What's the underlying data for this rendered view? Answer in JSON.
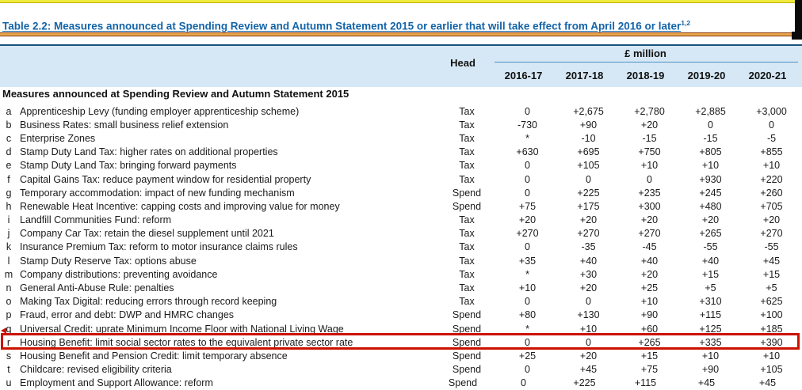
{
  "title": {
    "text": "Table 2.2: Measures announced at Spending Review and Autumn Statement 2015 or earlier that will take effect from April 2016 or later",
    "superscript": "1,2"
  },
  "columns": {
    "head_label": "Head",
    "unit_label": "£ million",
    "years": [
      "2016-17",
      "2017-18",
      "2018-19",
      "2019-20",
      "2020-21"
    ]
  },
  "section": {
    "heading": "Measures announced at Spending Review and Autumn Statement 2015"
  },
  "rows": [
    {
      "label": "a",
      "measure": "Apprenticeship Levy (funding employer apprenticeship scheme)",
      "head": "Tax",
      "values": [
        "0",
        "+2,675",
        "+2,780",
        "+2,885",
        "+3,000"
      ]
    },
    {
      "label": "b",
      "measure": "Business Rates: small business relief extension",
      "head": "Tax",
      "values": [
        "-730",
        "+90",
        "+20",
        "0",
        "0"
      ]
    },
    {
      "label": "c",
      "measure": "Enterprise Zones",
      "head": "Tax",
      "values": [
        "*",
        "-10",
        "-15",
        "-15",
        "-5"
      ]
    },
    {
      "label": "d",
      "measure": "Stamp Duty Land Tax: higher rates on additional properties",
      "head": "Tax",
      "values": [
        "+630",
        "+695",
        "+750",
        "+805",
        "+855"
      ]
    },
    {
      "label": "e",
      "measure": "Stamp Duty Land Tax: bringing forward payments",
      "head": "Tax",
      "values": [
        "0",
        "+105",
        "+10",
        "+10",
        "+10"
      ]
    },
    {
      "label": "f",
      "measure": "Capital Gains Tax: reduce payment window for residential property",
      "head": "Tax",
      "values": [
        "0",
        "0",
        "0",
        "+930",
        "+220"
      ]
    },
    {
      "label": "g",
      "measure": "Temporary accommodation: impact of new funding mechanism",
      "head": "Spend",
      "values": [
        "0",
        "+225",
        "+235",
        "+245",
        "+260"
      ]
    },
    {
      "label": "h",
      "measure": "Renewable Heat Incentive: capping costs and improving value for money",
      "head": "Spend",
      "values": [
        "+75",
        "+175",
        "+300",
        "+480",
        "+705"
      ]
    },
    {
      "label": "i",
      "measure": "Landfill Communities Fund: reform",
      "head": "Tax",
      "values": [
        "+20",
        "+20",
        "+20",
        "+20",
        "+20"
      ]
    },
    {
      "label": "j",
      "measure": "Company Car Tax: retain the diesel supplement until 2021",
      "head": "Tax",
      "values": [
        "+270",
        "+270",
        "+270",
        "+265",
        "+270"
      ]
    },
    {
      "label": "k",
      "measure": "Insurance Premium Tax: reform to motor insurance claims rules",
      "head": "Tax",
      "values": [
        "0",
        "-35",
        "-45",
        "-55",
        "-55"
      ]
    },
    {
      "label": "l",
      "measure": "Stamp Duty Reserve Tax: options abuse",
      "head": "Tax",
      "values": [
        "+35",
        "+40",
        "+40",
        "+40",
        "+45"
      ]
    },
    {
      "label": "m",
      "measure": "Company distributions: preventing avoidance",
      "head": "Tax",
      "values": [
        "*",
        "+30",
        "+20",
        "+15",
        "+15"
      ]
    },
    {
      "label": "n",
      "measure": "General Anti-Abuse Rule: penalties",
      "head": "Tax",
      "values": [
        "+10",
        "+20",
        "+25",
        "+5",
        "+5"
      ]
    },
    {
      "label": "o",
      "measure": "Making Tax Digital: reducing errors through record keeping",
      "head": "Tax",
      "values": [
        "0",
        "0",
        "+10",
        "+310",
        "+625"
      ]
    },
    {
      "label": "p",
      "measure": "Fraud, error and debt: DWP and HMRC changes",
      "head": "Spend",
      "values": [
        "+80",
        "+130",
        "+90",
        "+115",
        "+100"
      ]
    },
    {
      "label": "q",
      "measure": "Universal Credit: uprate Minimum Income Floor with National Living Wage",
      "head": "Spend",
      "values": [
        "*",
        "+10",
        "+60",
        "+125",
        "+185"
      ]
    },
    {
      "label": "r",
      "measure": "Housing Benefit: limit social sector rates to the equivalent private sector rate",
      "head": "Spend",
      "values": [
        "0",
        "0",
        "+265",
        "+335",
        "+390"
      ]
    },
    {
      "label": "s",
      "measure": "Housing Benefit and Pension Credit: limit temporary absence",
      "head": "Spend",
      "values": [
        "+25",
        "+20",
        "+15",
        "+10",
        "+10"
      ]
    },
    {
      "label": "t",
      "measure": "Childcare: revised eligibility criteria",
      "head": "Spend",
      "values": [
        "0",
        "+45",
        "+75",
        "+90",
        "+105"
      ]
    },
    {
      "label": "u",
      "measure": "Employment and Support Allowance: reform",
      "head": "Spend",
      "values": [
        "0",
        "+225",
        "+115",
        "+45",
        "+45"
      ]
    }
  ],
  "annotations": {
    "highlight_row_label": "r",
    "arrow_row_label": "q"
  },
  "colors": {
    "title_blue": "#1464A8",
    "band_blue": "#D6E8F5",
    "band_border_blue": "#16527D",
    "pound_underline_blue": "#4A90C4",
    "highlight_red": "#CC1100",
    "rule_brown": "#8A3808",
    "rule_gold": "#E8A84C",
    "top_bar_yellow": "#EFEA3D"
  }
}
